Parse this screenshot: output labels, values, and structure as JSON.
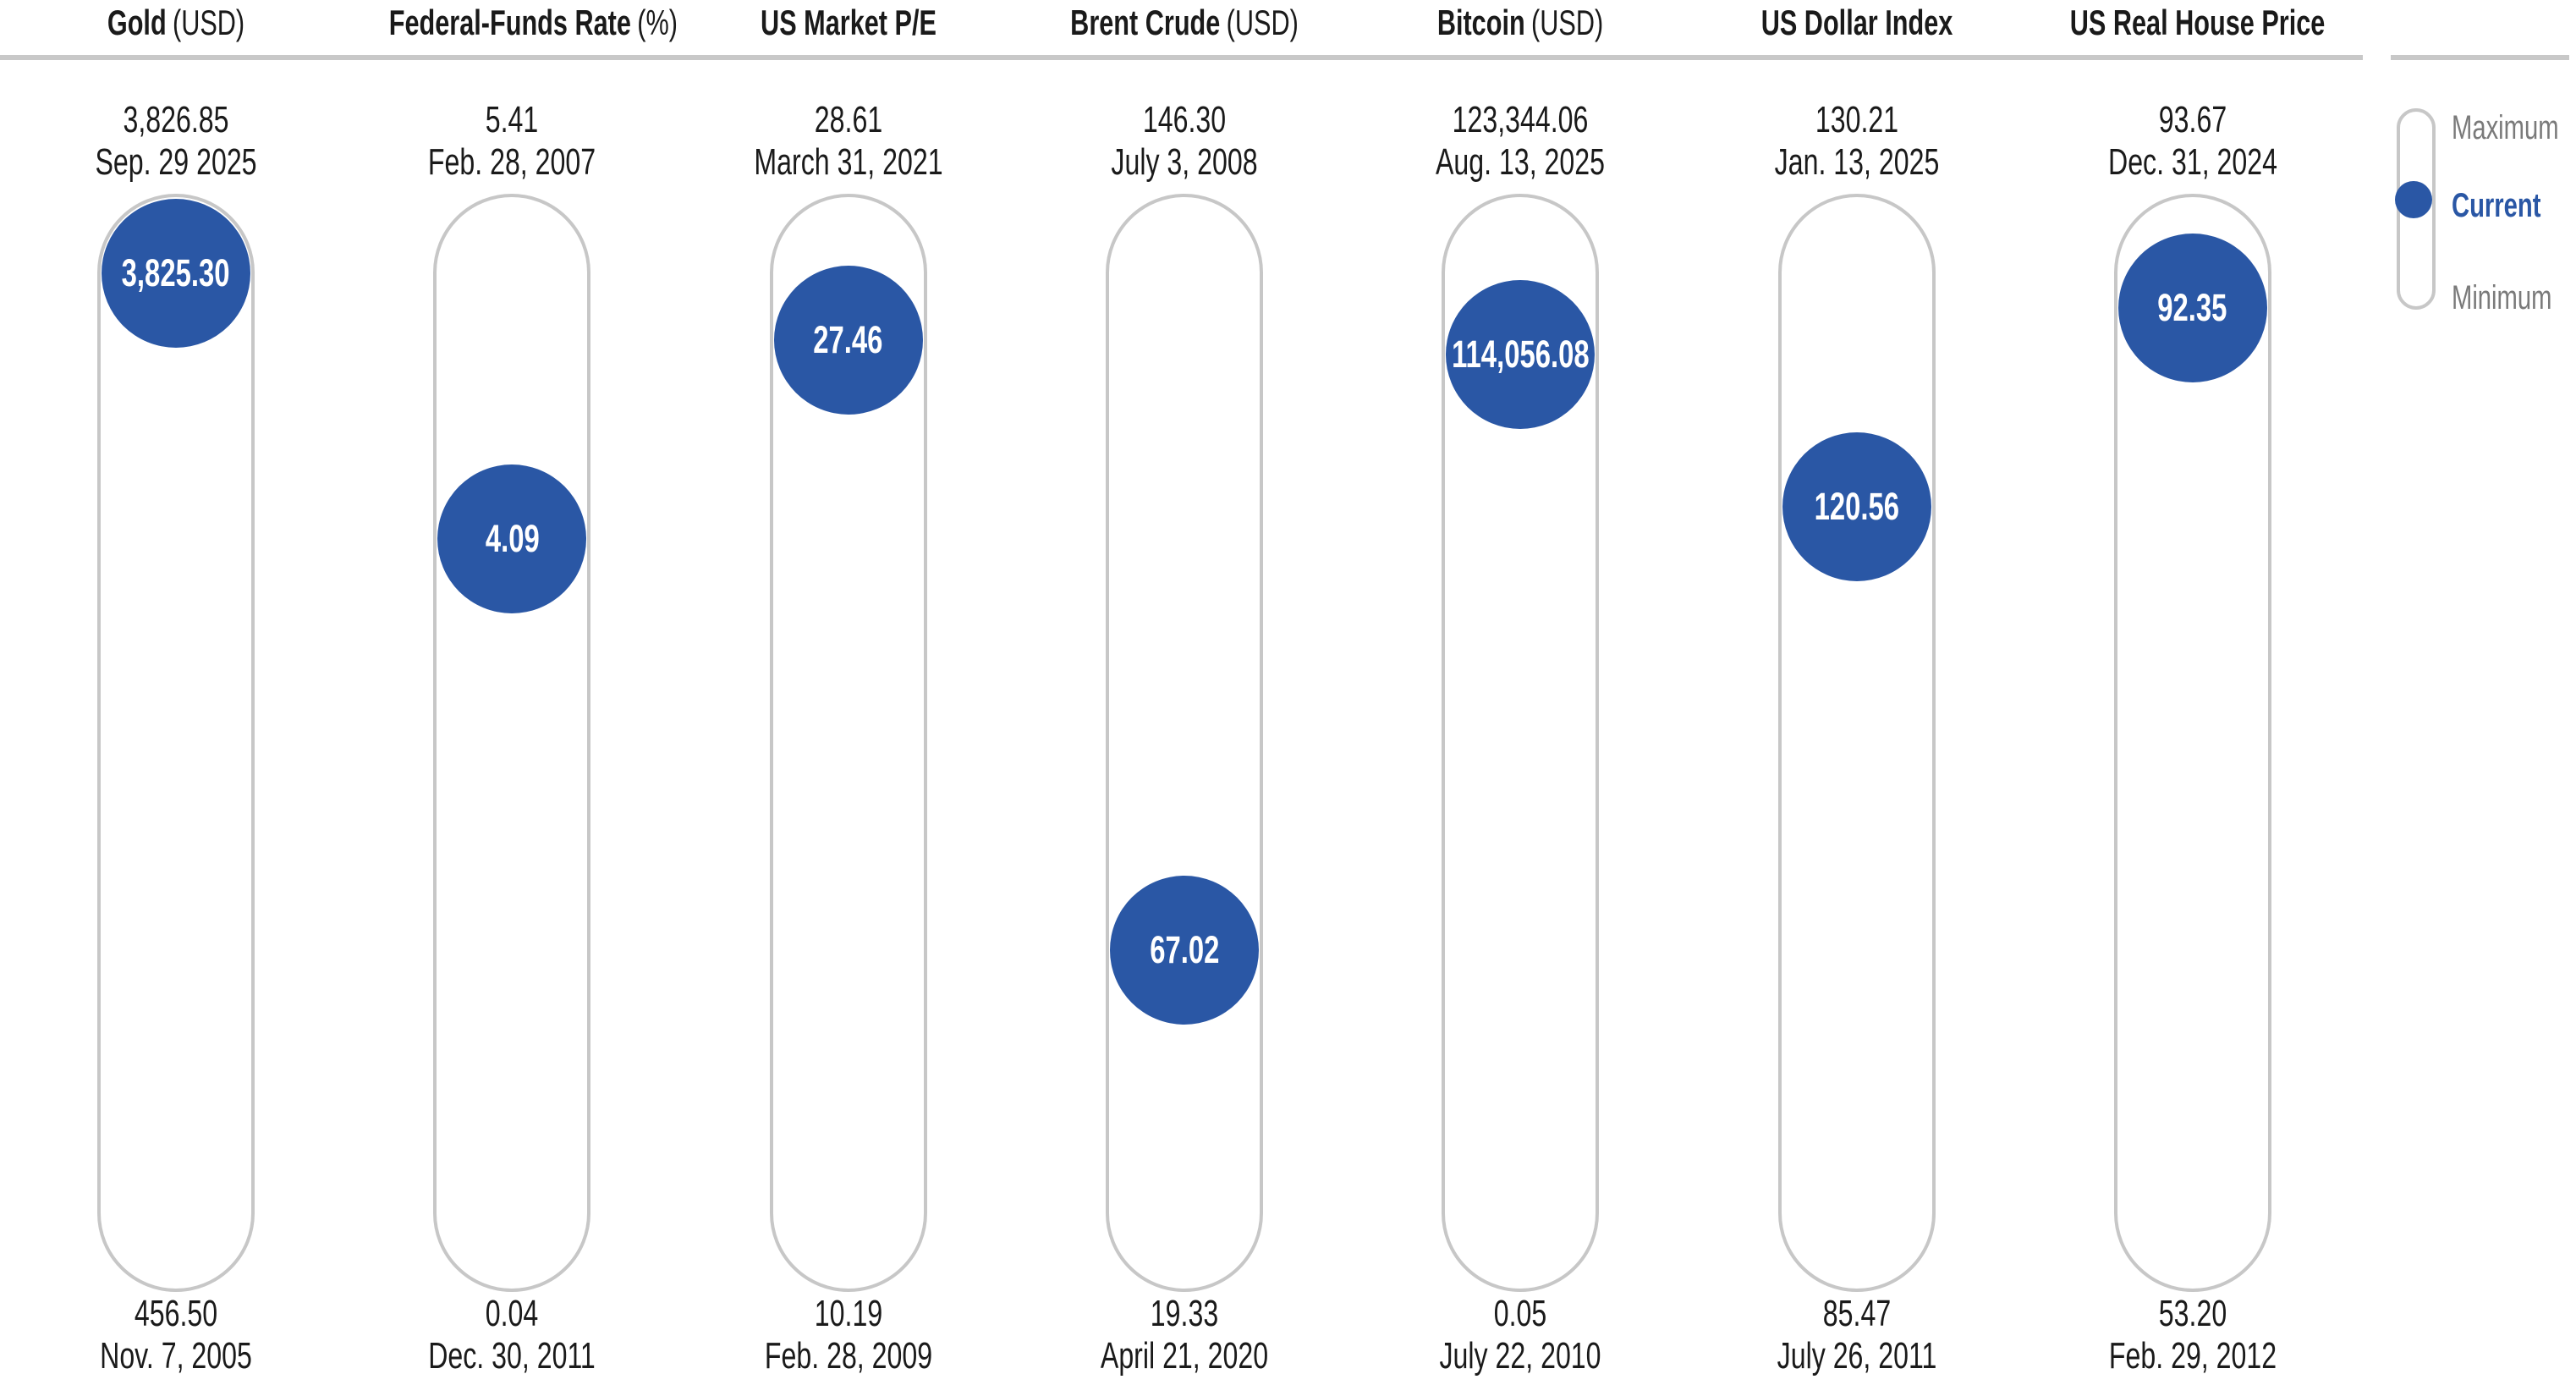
{
  "chart_data": {
    "type": "range-dot",
    "description": "Current value versus historical maximum and minimum for each indicator",
    "legend": {
      "maximum": "Maximum",
      "current": "Current",
      "minimum": "Minimum"
    },
    "colors": {
      "current_dot": "#2a57a5",
      "track_border": "#c7c7c7",
      "rule_line": "#c8c8c8",
      "gray_label": "#7a7a7a",
      "text": "#1a1a1a",
      "background": "#ffffff"
    },
    "layout": {
      "grid": "off",
      "legend_position": "right",
      "track_top_maps_to": "maximum",
      "track_bottom_maps_to": "minimum"
    },
    "indicators": [
      {
        "name": "Gold",
        "unit": "(USD)",
        "maximum": {
          "label": "3,826.85",
          "date": "Sep. 29 2025"
        },
        "current": {
          "label": "3,825.30"
        },
        "minimum": {
          "label": "456.50",
          "date": "Nov. 7, 2005"
        },
        "numeric": {
          "maximum": 3826.85,
          "current": 3825.3,
          "minimum": 456.5
        }
      },
      {
        "name": "Federal-Funds Rate",
        "unit": "(%)",
        "maximum": {
          "label": "5.41",
          "date": "Feb. 28, 2007"
        },
        "current": {
          "label": "4.09"
        },
        "minimum": {
          "label": "0.04",
          "date": "Dec. 30, 2011"
        },
        "numeric": {
          "maximum": 5.41,
          "current": 4.09,
          "minimum": 0.04
        }
      },
      {
        "name": "US Market P/E",
        "unit": "",
        "maximum": {
          "label": "28.61",
          "date": "March 31, 2021"
        },
        "current": {
          "label": "27.46"
        },
        "minimum": {
          "label": "10.19",
          "date": "Feb. 28, 2009"
        },
        "numeric": {
          "maximum": 28.61,
          "current": 27.46,
          "minimum": 10.19
        }
      },
      {
        "name": "Brent Crude",
        "unit": "(USD)",
        "maximum": {
          "label": "146.30",
          "date": "July 3, 2008"
        },
        "current": {
          "label": "67.02"
        },
        "minimum": {
          "label": "19.33",
          "date": "April 21, 2020"
        },
        "numeric": {
          "maximum": 146.3,
          "current": 67.02,
          "minimum": 19.33
        }
      },
      {
        "name": "Bitcoin",
        "unit": "(USD)",
        "maximum": {
          "label": "123,344.06",
          "date": "Aug. 13, 2025"
        },
        "current": {
          "label": "114,056.08"
        },
        "minimum": {
          "label": "0.05",
          "date": "July 22, 2010"
        },
        "numeric": {
          "maximum": 123344.06,
          "current": 114056.08,
          "minimum": 0.05
        }
      },
      {
        "name": "US Dollar Index",
        "unit": "",
        "maximum": {
          "label": "130.21",
          "date": "Jan. 13, 2025"
        },
        "current": {
          "label": "120.56"
        },
        "minimum": {
          "label": "85.47",
          "date": "July 26, 2011"
        },
        "numeric": {
          "maximum": 130.21,
          "current": 120.56,
          "minimum": 85.47
        }
      },
      {
        "name": "US Real House Price",
        "unit": "",
        "maximum": {
          "label": "93.67",
          "date": "Dec. 31, 2024"
        },
        "current": {
          "label": "92.35"
        },
        "minimum": {
          "label": "53.20",
          "date": "Feb. 29, 2012"
        },
        "numeric": {
          "maximum": 93.67,
          "current": 92.35,
          "minimum": 53.2
        }
      }
    ]
  }
}
